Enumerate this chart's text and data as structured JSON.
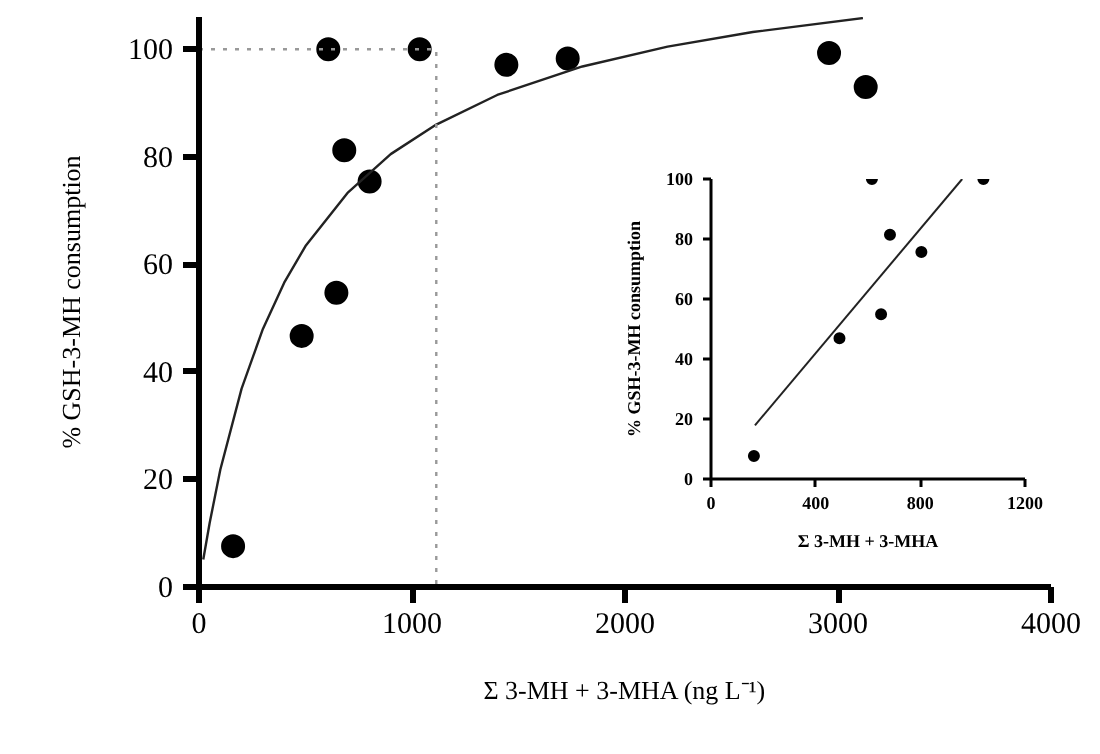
{
  "chart_data": [
    {
      "type": "scatter",
      "xlabel": "Σ 3-MH + 3-MHA (ng L⁻¹)",
      "ylabel": "% GSH-3-MH consumption",
      "xlim": [
        0,
        4000
      ],
      "ylim": [
        0,
        106
      ],
      "xticks": [
        {
          "value": 0,
          "label": "0"
        },
        {
          "value": 1000,
          "label": "1000"
        },
        {
          "value": 2000,
          "label": "2000"
        },
        {
          "value": 3000,
          "label": "3000"
        },
        {
          "value": 4000,
          "label": "4000"
        }
      ],
      "yticks": [
        0,
        20,
        40,
        60,
        80,
        100
      ],
      "grid": false,
      "series": [
        {
          "marker": "circle",
          "color": "#000000",
          "x": [
            160,
            482,
            607,
            645,
            682,
            801,
            1036,
            1443,
            1731,
            2958,
            3130
          ],
          "values": [
            7.6,
            46.7,
            100,
            54.7,
            81.2,
            75.4,
            100,
            97.1,
            98.3,
            99.3,
            93.0
          ]
        },
        {
          "type": "line",
          "marker": "none",
          "line_style": "solid",
          "color": "#222222",
          "x": [
            20,
            50,
            100,
            200,
            300,
            400,
            500,
            700,
            900,
            1114,
            1400,
            1800,
            2200,
            2600,
            3117
          ],
          "values": [
            5.1,
            11.9,
            21.8,
            36.9,
            48.0,
            56.6,
            63.4,
            73.4,
            80.5,
            86.0,
            91.5,
            96.8,
            100.5,
            103.2,
            105.8
          ]
        },
        {
          "type": "line",
          "marker": "none",
          "line_style": "dotted",
          "color": "#999999",
          "x": [
            0,
            1114,
            1114
          ],
          "values": [
            100,
            100,
            0
          ]
        }
      ]
    },
    {
      "type": "scatter",
      "xlabel": "Σ 3-MH + 3-MHA",
      "ylabel": "% GSH-3-MH consumption",
      "xlim": [
        0,
        1200
      ],
      "ylim": [
        0,
        100
      ],
      "xticks": [
        0,
        400,
        800,
        1200
      ],
      "yticks": [
        0,
        20,
        40,
        60,
        80,
        100
      ],
      "grid": false,
      "series": [
        {
          "marker": "circle",
          "color": "#000000",
          "x": [
            164,
            491,
            615,
            650,
            684,
            804,
            1041
          ],
          "values": [
            7.7,
            46.9,
            100,
            54.9,
            81.4,
            75.7,
            100
          ]
        },
        {
          "type": "line",
          "marker": "none",
          "line_style": "solid",
          "color": "#222222",
          "x": [
            168,
            960
          ],
          "values": [
            17.9,
            100
          ]
        }
      ]
    }
  ]
}
